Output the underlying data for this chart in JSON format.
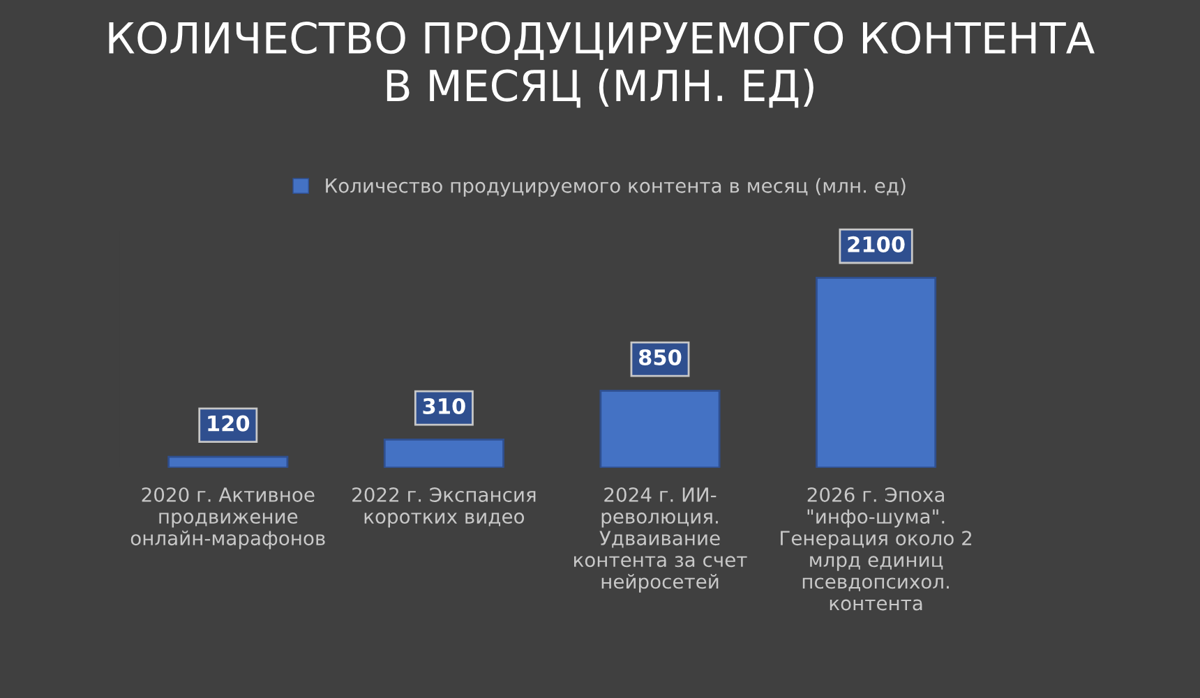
{
  "chart_data": {
    "type": "bar",
    "title": "КОЛИЧЕСТВО ПРОДУЦИРУЕМОГО КОНТЕНТА\nВ МЕСЯЦ (МЛН. ЕД)",
    "categories": [
      "2020 г. Активное\nпродвижение\nонлайн-марафонов",
      "2022 г. Экспансия\nкоротких видео",
      "2024 г. ИИ-\nреволюция.\nУдваивание\nконтента за счет\nнейросетей",
      "2026 г. Эпоха\n\"инфо-шума\".\nГенерация около 2\nмлрд единиц\nпсевдопсихол.\nконтента"
    ],
    "series": [
      {
        "name": "Количество продуцируемого контента в месяц (млн. ед)",
        "color": "#4472c4",
        "values": [
          120,
          310,
          850,
          2100
        ]
      }
    ],
    "data_labels": true,
    "legend": "top",
    "grid": false
  }
}
